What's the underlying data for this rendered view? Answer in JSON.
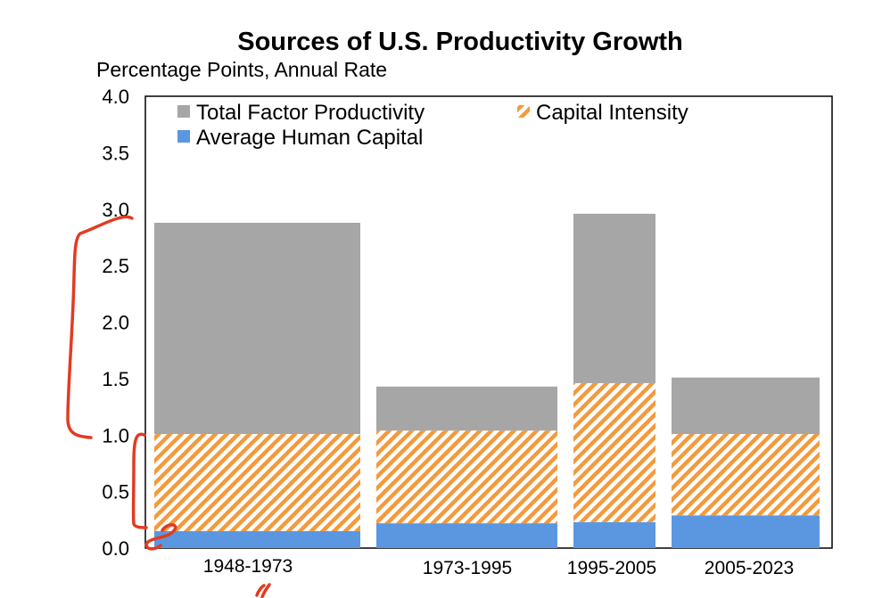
{
  "chart_data": {
    "type": "bar",
    "stacked": true,
    "title": "Sources of U.S. Productivity Growth",
    "subtitle": "Percentage Points, Annual Rate",
    "xlabel": "",
    "ylabel": "",
    "ylim": [
      0,
      4.0
    ],
    "yticks": [
      "0.0",
      "0.5",
      "1.0",
      "1.5",
      "2.0",
      "2.5",
      "3.0",
      "3.5",
      "4.0"
    ],
    "grid": false,
    "legend_position": "top-left",
    "categories": [
      "1948-1973",
      "1973-1995",
      "1995-2005",
      "2005-2023"
    ],
    "series": [
      {
        "name": "Average Human Capital",
        "values": [
          0.15,
          0.22,
          0.23,
          0.29
        ],
        "color": "#5b97e0",
        "pattern": "solid"
      },
      {
        "name": "Capital Intensity",
        "values": [
          0.86,
          0.82,
          1.23,
          0.72
        ],
        "color": "#f39a3d",
        "pattern": "diagonal-stripes"
      },
      {
        "name": "Total Factor Productivity",
        "values": [
          1.87,
          0.39,
          1.5,
          0.5
        ],
        "color": "#a6a6a6",
        "pattern": "solid"
      }
    ],
    "totals": [
      2.88,
      1.43,
      2.96,
      1.51
    ],
    "legend_order": [
      "Total Factor Productivity",
      "Capital Intensity",
      "Average Human Capital"
    ],
    "annotations": "red hand-drawn brackets along the y-axis"
  }
}
